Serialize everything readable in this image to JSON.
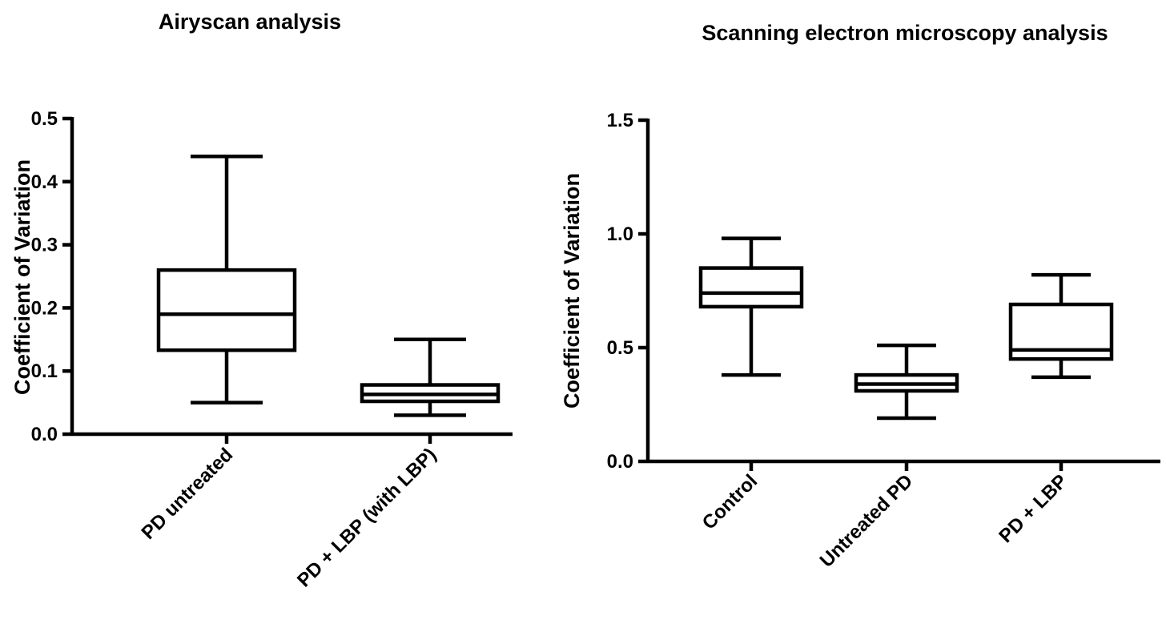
{
  "chart_data": [
    {
      "type": "boxplot",
      "title": "Airyscan analysis",
      "ylabel": "Coefficient of Variation",
      "xlabel": "",
      "ylim": [
        0,
        0.5
      ],
      "yticks": [
        "0.0",
        "0.1",
        "0.2",
        "0.3",
        "0.4",
        "0.5"
      ],
      "ytick_values": [
        0,
        0.1,
        0.2,
        0.3,
        0.4,
        0.5
      ],
      "grid": false,
      "categories": [
        "PD untreated",
        "PD + LBP (with LBP)"
      ],
      "boxes": [
        {
          "min": 0.05,
          "q1": 0.133,
          "median": 0.19,
          "q3": 0.26,
          "max": 0.44
        },
        {
          "min": 0.03,
          "q1": 0.052,
          "median": 0.063,
          "q3": 0.078,
          "max": 0.15
        }
      ]
    },
    {
      "type": "boxplot",
      "title": "Scanning electron microscopy analysis",
      "ylabel": "Coefficient of Variation",
      "xlabel": "",
      "ylim": [
        0,
        1.5
      ],
      "yticks": [
        "0.0",
        "0.5",
        "1.0",
        "1.5"
      ],
      "ytick_values": [
        0,
        0.5,
        1.0,
        1.5
      ],
      "grid": false,
      "categories": [
        "Control",
        "Untreated PD",
        "PD + LBP"
      ],
      "boxes": [
        {
          "min": 0.38,
          "q1": 0.68,
          "median": 0.74,
          "q3": 0.85,
          "max": 0.98
        },
        {
          "min": 0.19,
          "q1": 0.31,
          "median": 0.34,
          "q3": 0.38,
          "max": 0.51
        },
        {
          "min": 0.37,
          "q1": 0.45,
          "median": 0.49,
          "q3": 0.69,
          "max": 0.82
        }
      ]
    }
  ]
}
